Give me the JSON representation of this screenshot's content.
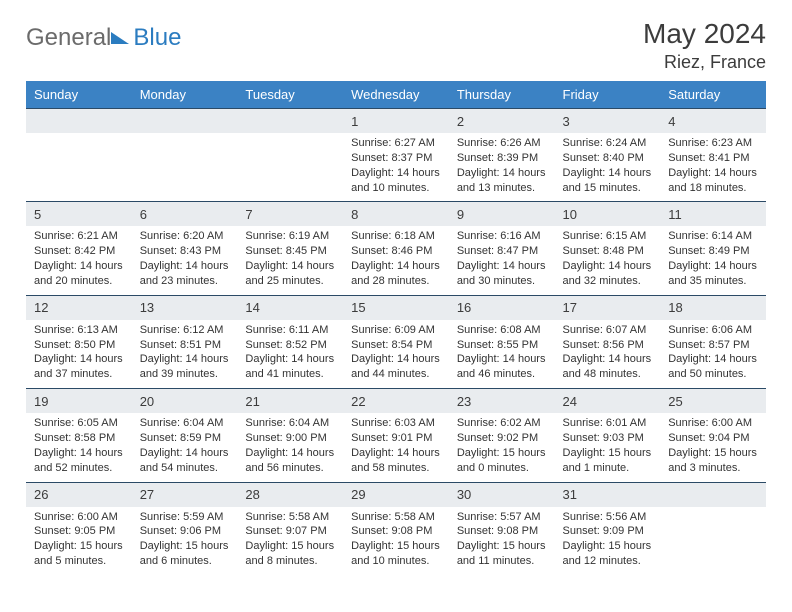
{
  "brand": {
    "word1": "General",
    "word2": "Blue"
  },
  "title": "May 2024",
  "location": "Riez, France",
  "header_bg": "#3b82c4",
  "daynum_bg": "#e9ecef",
  "rule_color": "#2b4a66",
  "text_color": "#333333",
  "day_names": [
    "Sunday",
    "Monday",
    "Tuesday",
    "Wednesday",
    "Thursday",
    "Friday",
    "Saturday"
  ],
  "weeks": [
    [
      null,
      null,
      null,
      {
        "n": "1",
        "sr": "6:27 AM",
        "ss": "8:37 PM",
        "dl": "14 hours and 10 minutes."
      },
      {
        "n": "2",
        "sr": "6:26 AM",
        "ss": "8:39 PM",
        "dl": "14 hours and 13 minutes."
      },
      {
        "n": "3",
        "sr": "6:24 AM",
        "ss": "8:40 PM",
        "dl": "14 hours and 15 minutes."
      },
      {
        "n": "4",
        "sr": "6:23 AM",
        "ss": "8:41 PM",
        "dl": "14 hours and 18 minutes."
      }
    ],
    [
      {
        "n": "5",
        "sr": "6:21 AM",
        "ss": "8:42 PM",
        "dl": "14 hours and 20 minutes."
      },
      {
        "n": "6",
        "sr": "6:20 AM",
        "ss": "8:43 PM",
        "dl": "14 hours and 23 minutes."
      },
      {
        "n": "7",
        "sr": "6:19 AM",
        "ss": "8:45 PM",
        "dl": "14 hours and 25 minutes."
      },
      {
        "n": "8",
        "sr": "6:18 AM",
        "ss": "8:46 PM",
        "dl": "14 hours and 28 minutes."
      },
      {
        "n": "9",
        "sr": "6:16 AM",
        "ss": "8:47 PM",
        "dl": "14 hours and 30 minutes."
      },
      {
        "n": "10",
        "sr": "6:15 AM",
        "ss": "8:48 PM",
        "dl": "14 hours and 32 minutes."
      },
      {
        "n": "11",
        "sr": "6:14 AM",
        "ss": "8:49 PM",
        "dl": "14 hours and 35 minutes."
      }
    ],
    [
      {
        "n": "12",
        "sr": "6:13 AM",
        "ss": "8:50 PM",
        "dl": "14 hours and 37 minutes."
      },
      {
        "n": "13",
        "sr": "6:12 AM",
        "ss": "8:51 PM",
        "dl": "14 hours and 39 minutes."
      },
      {
        "n": "14",
        "sr": "6:11 AM",
        "ss": "8:52 PM",
        "dl": "14 hours and 41 minutes."
      },
      {
        "n": "15",
        "sr": "6:09 AM",
        "ss": "8:54 PM",
        "dl": "14 hours and 44 minutes."
      },
      {
        "n": "16",
        "sr": "6:08 AM",
        "ss": "8:55 PM",
        "dl": "14 hours and 46 minutes."
      },
      {
        "n": "17",
        "sr": "6:07 AM",
        "ss": "8:56 PM",
        "dl": "14 hours and 48 minutes."
      },
      {
        "n": "18",
        "sr": "6:06 AM",
        "ss": "8:57 PM",
        "dl": "14 hours and 50 minutes."
      }
    ],
    [
      {
        "n": "19",
        "sr": "6:05 AM",
        "ss": "8:58 PM",
        "dl": "14 hours and 52 minutes."
      },
      {
        "n": "20",
        "sr": "6:04 AM",
        "ss": "8:59 PM",
        "dl": "14 hours and 54 minutes."
      },
      {
        "n": "21",
        "sr": "6:04 AM",
        "ss": "9:00 PM",
        "dl": "14 hours and 56 minutes."
      },
      {
        "n": "22",
        "sr": "6:03 AM",
        "ss": "9:01 PM",
        "dl": "14 hours and 58 minutes."
      },
      {
        "n": "23",
        "sr": "6:02 AM",
        "ss": "9:02 PM",
        "dl": "15 hours and 0 minutes."
      },
      {
        "n": "24",
        "sr": "6:01 AM",
        "ss": "9:03 PM",
        "dl": "15 hours and 1 minute."
      },
      {
        "n": "25",
        "sr": "6:00 AM",
        "ss": "9:04 PM",
        "dl": "15 hours and 3 minutes."
      }
    ],
    [
      {
        "n": "26",
        "sr": "6:00 AM",
        "ss": "9:05 PM",
        "dl": "15 hours and 5 minutes."
      },
      {
        "n": "27",
        "sr": "5:59 AM",
        "ss": "9:06 PM",
        "dl": "15 hours and 6 minutes."
      },
      {
        "n": "28",
        "sr": "5:58 AM",
        "ss": "9:07 PM",
        "dl": "15 hours and 8 minutes."
      },
      {
        "n": "29",
        "sr": "5:58 AM",
        "ss": "9:08 PM",
        "dl": "15 hours and 10 minutes."
      },
      {
        "n": "30",
        "sr": "5:57 AM",
        "ss": "9:08 PM",
        "dl": "15 hours and 11 minutes."
      },
      {
        "n": "31",
        "sr": "5:56 AM",
        "ss": "9:09 PM",
        "dl": "15 hours and 12 minutes."
      },
      null
    ]
  ],
  "labels": {
    "sunrise": "Sunrise: ",
    "sunset": "Sunset: ",
    "daylight": "Daylight: "
  }
}
